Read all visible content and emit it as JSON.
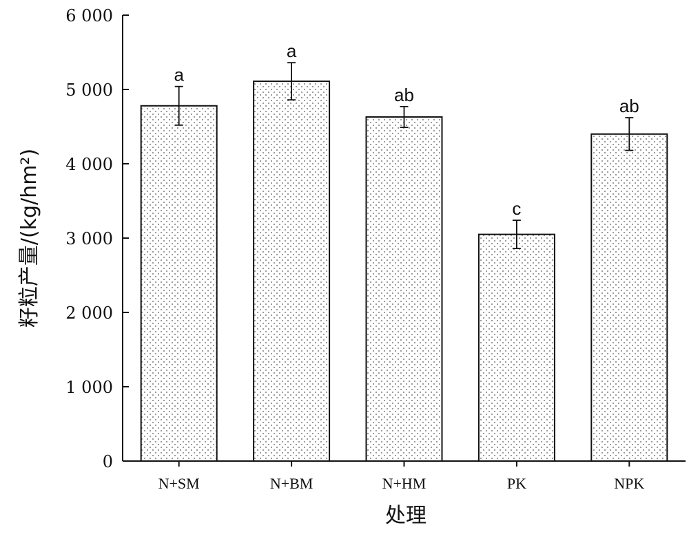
{
  "chart_data": {
    "type": "bar",
    "xlabel": "处理",
    "ylabel": "籽粒产量/(kg/hm²)",
    "ylim": [
      0,
      6000
    ],
    "yticks": [
      0,
      1000,
      2000,
      3000,
      4000,
      5000,
      6000
    ],
    "ytick_labels": [
      "0",
      "1 000",
      "2 000",
      "3 000",
      "4 000",
      "5 000",
      "6 000"
    ],
    "categories": [
      "N+SM",
      "N+BM",
      "N+HM",
      "PK",
      "NPK"
    ],
    "values": [
      4780,
      5110,
      4630,
      3050,
      4400
    ],
    "errors": [
      260,
      250,
      140,
      190,
      220
    ],
    "significance": [
      "a",
      "a",
      "ab",
      "c",
      "ab"
    ],
    "bar_fill": "dotted pattern",
    "grid": false,
    "legend": "none"
  },
  "colors": {
    "axis": "#111111",
    "bar_fill": "#ffffff",
    "dot": "#555555"
  }
}
